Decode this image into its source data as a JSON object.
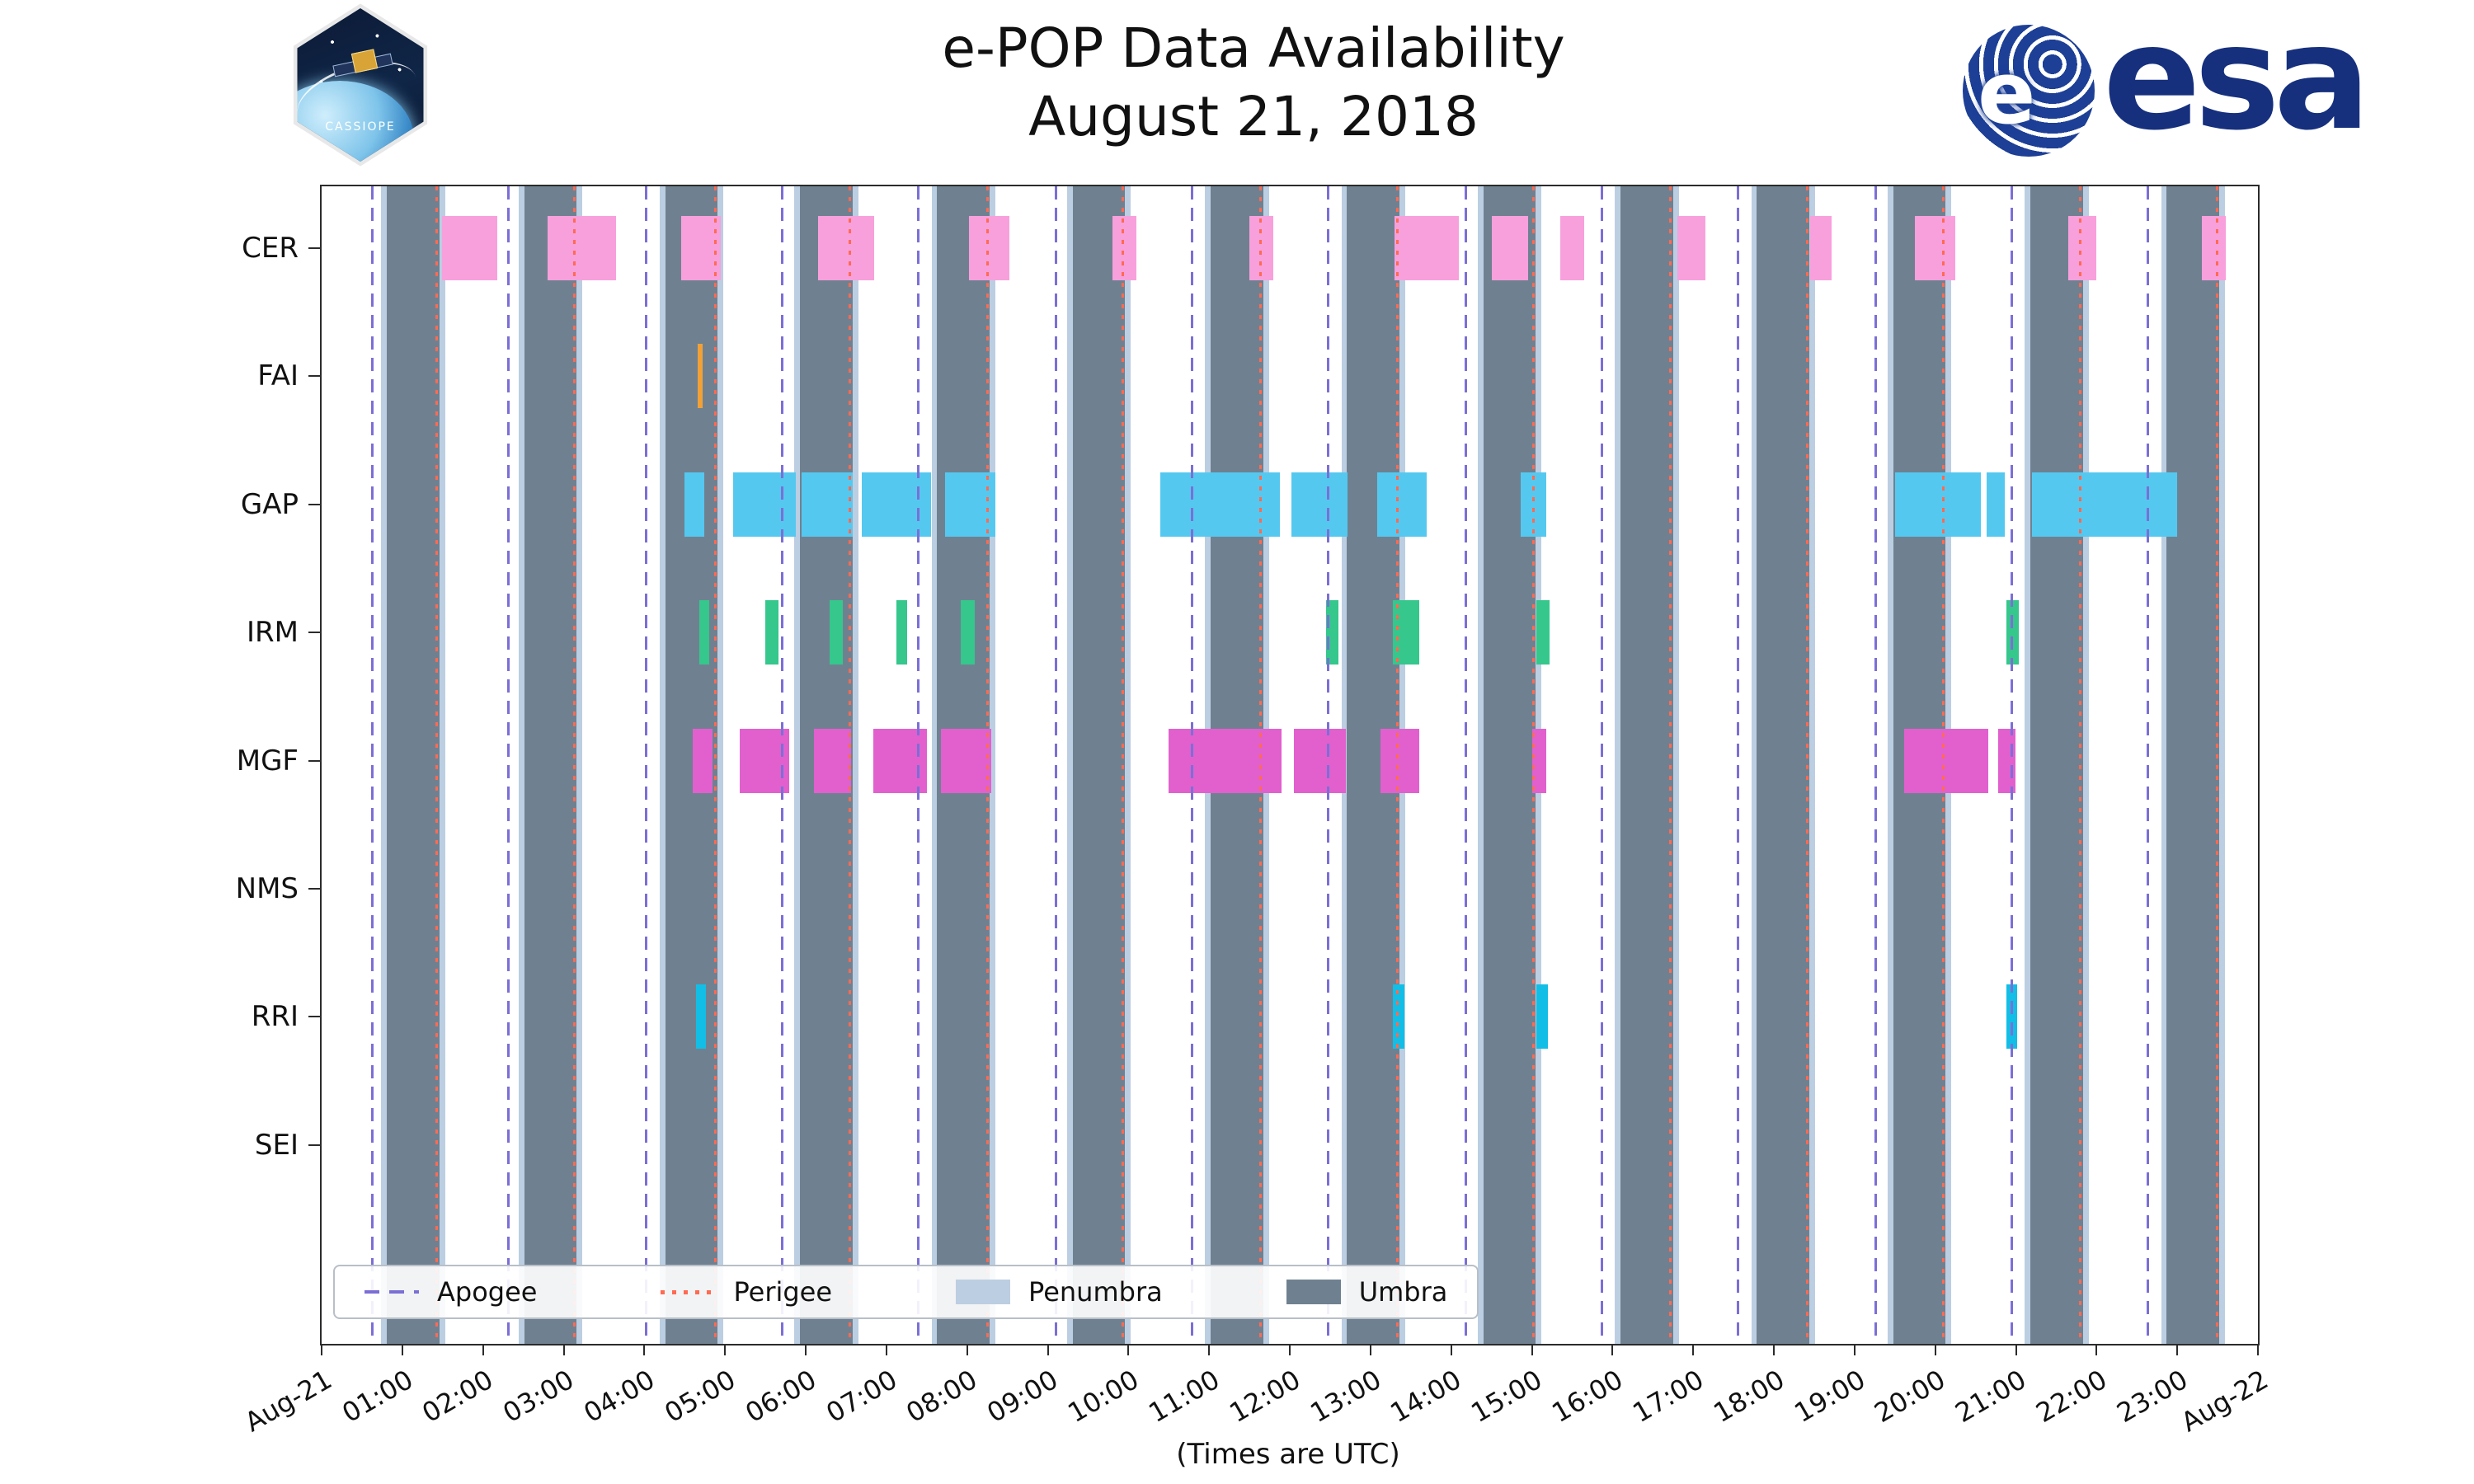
{
  "header": {
    "patch_text": "CASSIOPE",
    "esa_wordmark": "esa",
    "esa_globe_letter": "e"
  },
  "chart_data": {
    "type": "timeline",
    "title": "e-POP Data Availability",
    "subtitle": "August 21, 2018",
    "xlabel": "(Times are UTC)",
    "x_range_hours": [
      0,
      24
    ],
    "x_ticks": [
      "Aug-21",
      "01:00",
      "02:00",
      "03:00",
      "04:00",
      "05:00",
      "06:00",
      "07:00",
      "08:00",
      "09:00",
      "10:00",
      "11:00",
      "12:00",
      "13:00",
      "14:00",
      "15:00",
      "16:00",
      "17:00",
      "18:00",
      "19:00",
      "20:00",
      "21:00",
      "22:00",
      "23:00",
      "Aug-22"
    ],
    "instruments": [
      "CER",
      "FAI",
      "GAP",
      "IRM",
      "MGF",
      "NMS",
      "RRI",
      "SEI"
    ],
    "colors": {
      "apogee": "#7B6FD6",
      "perigee": "#FF6A52",
      "penumbra": "#BCCEE2",
      "umbra": "#6F8191",
      "axis": "#2b2b2b"
    },
    "legend": {
      "items": [
        {
          "label": "Apogee",
          "type": "dashed-line",
          "color": "#7B6FD6"
        },
        {
          "label": "Perigee",
          "type": "dotted-line",
          "color": "#FF6A52"
        },
        {
          "label": "Penumbra",
          "type": "patch",
          "color": "#BCCEE2"
        },
        {
          "label": "Umbra",
          "type": "patch",
          "color": "#6F8191"
        }
      ]
    },
    "apogee_hours": [
      0.63,
      2.32,
      4.02,
      5.71,
      7.4,
      9.1,
      10.79,
      12.48,
      14.18,
      15.87,
      17.56,
      19.26,
      20.95,
      22.64
    ],
    "perigee_hours": [
      1.43,
      3.13,
      4.88,
      6.55,
      8.25,
      9.93,
      11.64,
      13.33,
      15.02,
      16.72,
      18.41,
      20.1,
      21.8,
      23.49
    ],
    "umbra_intervals": [
      [
        0.81,
        1.46
      ],
      [
        2.51,
        3.16
      ],
      [
        4.26,
        4.91
      ],
      [
        5.93,
        6.58
      ],
      [
        7.63,
        8.28
      ],
      [
        9.31,
        9.96
      ],
      [
        11.02,
        11.67
      ],
      [
        12.71,
        13.36
      ],
      [
        14.4,
        15.05
      ],
      [
        16.1,
        16.75
      ],
      [
        17.79,
        18.44
      ],
      [
        19.48,
        20.13
      ],
      [
        21.18,
        21.83
      ],
      [
        22.87,
        23.52
      ]
    ],
    "penumbra_intervals": [
      [
        0.74,
        0.81
      ],
      [
        1.46,
        1.53
      ],
      [
        2.44,
        2.51
      ],
      [
        3.16,
        3.23
      ],
      [
        4.19,
        4.26
      ],
      [
        4.91,
        4.98
      ],
      [
        5.86,
        5.93
      ],
      [
        6.58,
        6.65
      ],
      [
        7.56,
        7.63
      ],
      [
        8.28,
        8.35
      ],
      [
        9.24,
        9.31
      ],
      [
        9.96,
        10.03
      ],
      [
        10.95,
        11.02
      ],
      [
        11.67,
        11.74
      ],
      [
        12.64,
        12.71
      ],
      [
        13.36,
        13.43
      ],
      [
        14.33,
        14.4
      ],
      [
        15.05,
        15.12
      ],
      [
        16.03,
        16.1
      ],
      [
        16.75,
        16.82
      ],
      [
        17.72,
        17.79
      ],
      [
        18.44,
        18.51
      ],
      [
        19.41,
        19.48
      ],
      [
        20.13,
        20.2
      ],
      [
        21.11,
        21.18
      ],
      [
        21.83,
        21.9
      ],
      [
        22.8,
        22.87
      ],
      [
        23.52,
        23.59
      ]
    ],
    "series": [
      {
        "name": "CER",
        "color": "#F8A0DC",
        "intervals": [
          [
            1.49,
            2.18
          ],
          [
            2.8,
            3.65
          ],
          [
            4.46,
            4.95
          ],
          [
            6.15,
            6.85
          ],
          [
            8.02,
            8.52
          ],
          [
            9.8,
            10.1
          ],
          [
            11.5,
            11.8
          ],
          [
            13.3,
            14.1
          ],
          [
            14.5,
            14.95
          ],
          [
            15.35,
            15.65
          ],
          [
            16.8,
            17.15
          ],
          [
            18.45,
            18.72
          ],
          [
            19.75,
            20.25
          ],
          [
            21.65,
            22.0
          ],
          [
            23.3,
            23.6
          ]
        ]
      },
      {
        "name": "FAI",
        "color": "#F2A136",
        "intervals": [
          [
            4.66,
            4.72
          ]
        ]
      },
      {
        "name": "GAP",
        "color": "#55C8F0",
        "intervals": [
          [
            4.5,
            4.74
          ],
          [
            5.1,
            5.88
          ],
          [
            5.95,
            6.58
          ],
          [
            6.7,
            7.55
          ],
          [
            7.73,
            8.35
          ],
          [
            10.4,
            11.88
          ],
          [
            12.02,
            12.72
          ],
          [
            13.08,
            13.7
          ],
          [
            14.86,
            15.18
          ],
          [
            19.5,
            20.57
          ],
          [
            20.64,
            20.86
          ],
          [
            21.2,
            23.0
          ]
        ]
      },
      {
        "name": "IRM",
        "color": "#35C78C",
        "intervals": [
          [
            4.68,
            4.8
          ],
          [
            5.5,
            5.66
          ],
          [
            6.3,
            6.46
          ],
          [
            7.12,
            7.26
          ],
          [
            7.92,
            8.1
          ],
          [
            12.45,
            12.6
          ],
          [
            13.28,
            13.6
          ],
          [
            15.06,
            15.22
          ],
          [
            20.88,
            21.04
          ]
        ]
      },
      {
        "name": "MGF",
        "color": "#E160CE",
        "intervals": [
          [
            4.6,
            4.84
          ],
          [
            5.18,
            5.8
          ],
          [
            6.1,
            6.56
          ],
          [
            6.84,
            7.5
          ],
          [
            7.68,
            8.3
          ],
          [
            10.5,
            11.9
          ],
          [
            12.05,
            12.7
          ],
          [
            13.12,
            13.6
          ],
          [
            15.0,
            15.18
          ],
          [
            19.62,
            20.66
          ],
          [
            20.78,
            21.0
          ]
        ]
      },
      {
        "name": "NMS",
        "color": "#9467BD",
        "intervals": []
      },
      {
        "name": "RRI",
        "color": "#12BEE6",
        "intervals": [
          [
            4.64,
            4.76
          ],
          [
            13.28,
            13.42
          ],
          [
            15.06,
            15.2
          ],
          [
            20.88,
            21.02
          ]
        ]
      },
      {
        "name": "SEI",
        "color": "#8C564B",
        "intervals": []
      }
    ]
  }
}
